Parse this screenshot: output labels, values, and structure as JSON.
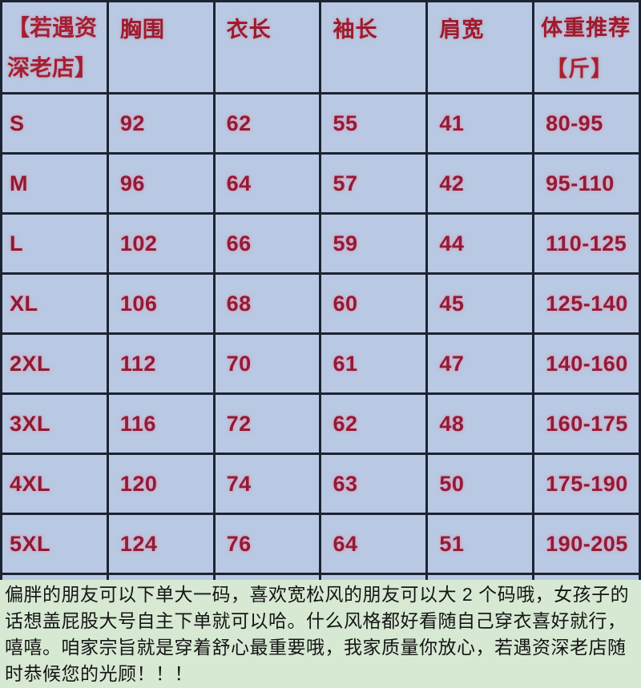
{
  "chart_data": {
    "type": "table",
    "title": "服装尺码表",
    "columns": [
      "【若遇资深老店】",
      "胸围",
      "衣长",
      "袖长",
      "肩宽",
      "体重推荐【斤】"
    ],
    "header": {
      "shop_line1": "【若遇资",
      "shop_line2": "深老店】",
      "chest": "胸围",
      "length": "衣长",
      "sleeve": "袖长",
      "shoulder": "肩宽",
      "weight_line1": "体重推荐",
      "weight_line2": "【斤】"
    },
    "rows": [
      {
        "size": "S",
        "chest": "92",
        "length": "62",
        "sleeve": "55",
        "shoulder": "41",
        "weight": "80-95"
      },
      {
        "size": "M",
        "chest": "96",
        "length": "64",
        "sleeve": "57",
        "shoulder": "42",
        "weight": "95-110"
      },
      {
        "size": "L",
        "chest": "102",
        "length": "66",
        "sleeve": "59",
        "shoulder": "44",
        "weight": "110-125"
      },
      {
        "size": "XL",
        "chest": "106",
        "length": "68",
        "sleeve": "60",
        "shoulder": "45",
        "weight": "125-140"
      },
      {
        "size": "2XL",
        "chest": "112",
        "length": "70",
        "sleeve": "61",
        "shoulder": "47",
        "weight": "140-160"
      },
      {
        "size": "3XL",
        "chest": "116",
        "length": "72",
        "sleeve": "62",
        "shoulder": "48",
        "weight": "160-175"
      },
      {
        "size": "4XL",
        "chest": "120",
        "length": "74",
        "sleeve": "63",
        "shoulder": "50",
        "weight": "175-190"
      },
      {
        "size": "5XL",
        "chest": "124",
        "length": "76",
        "sleeve": "64",
        "shoulder": "51",
        "weight": "190-205"
      }
    ]
  },
  "footer": {
    "note": "偏胖的朋友可以下单大一码，喜欢宽松风的朋友可以大 2 个码哦，女孩子的话想盖屁股大号自主下单就可以哈。什么风格都好看随自己穿衣喜好就行，嘻嘻。咱家宗旨就是穿着舒心最重要哦，我家质量你放心，若遇资深老店随时恭候您的光顾！！！"
  },
  "colors": {
    "cell_background": "#b9c9e3",
    "grid_border": "#1c2433",
    "header_text": "#9c1b2d",
    "value_text": "#8f1c38",
    "footer_background": "#d7e9d3",
    "footer_text": "#151515"
  }
}
